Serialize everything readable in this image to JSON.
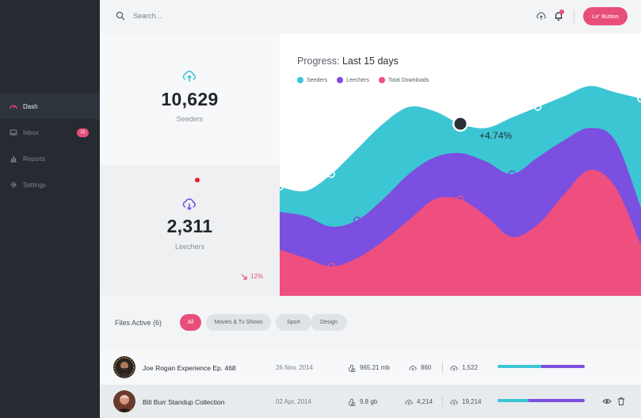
{
  "sidebar": {
    "items": [
      {
        "label": "Dash",
        "icon": "dashboard-icon",
        "active": true
      },
      {
        "label": "Inbox",
        "icon": "inbox-icon",
        "badge": "11"
      },
      {
        "label": "Reports",
        "icon": "reports-icon"
      },
      {
        "label": "Settings",
        "icon": "gear-icon"
      }
    ]
  },
  "topbar": {
    "search_placeholder": "Search...",
    "button_label": "Le' Button"
  },
  "stats": {
    "seeders": {
      "value": "10,629",
      "label": "Seeders",
      "icon": "cloud-upload-icon"
    },
    "leechers": {
      "value": "2,311",
      "label": "Leechers",
      "icon": "cloud-download-icon",
      "trend": "12%"
    }
  },
  "chart": {
    "title_prefix": "Progress:",
    "title_strong": "Last 15 days",
    "legend": [
      {
        "label": "Seeders",
        "color": "#3cc6d4"
      },
      {
        "label": "Leechers",
        "color": "#7b4fe0"
      },
      {
        "label": "Total Downloads",
        "color": "#ee4f7f"
      }
    ],
    "annotation": "+4.74%"
  },
  "chart_data": {
    "type": "area",
    "title": "Progress: Last 15 days",
    "xlabel": "",
    "ylabel": "",
    "grid": false,
    "legend_position": "top-left",
    "x": [
      1,
      2,
      3,
      4,
      5,
      6,
      7,
      8,
      9,
      10,
      11,
      12,
      13,
      14,
      15
    ],
    "series": [
      {
        "name": "Seeders",
        "values": [
          52,
          50,
          58,
          70,
          82,
          90,
          88,
          82,
          80,
          85,
          90,
          95,
          100,
          97,
          94
        ]
      },
      {
        "name": "Leechers",
        "values": [
          40,
          38,
          33,
          36,
          46,
          58,
          66,
          68,
          64,
          58,
          66,
          74,
          80,
          74,
          42
        ]
      },
      {
        "name": "Total Downloads",
        "values": [
          22,
          18,
          14,
          18,
          26,
          36,
          46,
          46,
          38,
          28,
          34,
          48,
          60,
          52,
          24
        ]
      }
    ],
    "ylim": [
      0,
      110
    ]
  },
  "files": {
    "title": "Files Active (6)",
    "filters": [
      "All",
      "Movies & Tv Shows",
      "Sport",
      "Design"
    ],
    "rows": [
      {
        "name": "Joe Rogan Experience Ep. 468",
        "date": "26 Nov, 2014",
        "size": "965.21 mb",
        "seeders": "860",
        "uploads": "1,522",
        "progress": 0.5
      },
      {
        "name": "Bill Burr Standup Collection",
        "date": "02 Apr, 2014",
        "size": "9.8 gb",
        "seeders": "4,214",
        "uploads": "19,214",
        "progress": 0.35
      }
    ]
  }
}
